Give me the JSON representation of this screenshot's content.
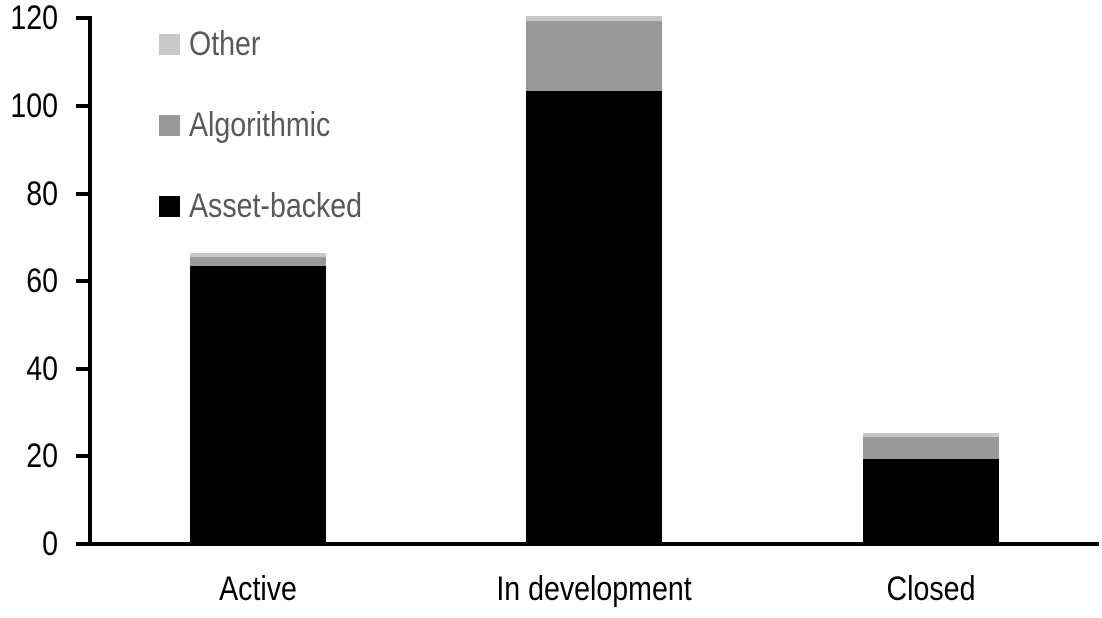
{
  "chart_data": {
    "type": "bar",
    "stacked": true,
    "title": "",
    "categories": [
      "Active",
      "In development",
      "Closed"
    ],
    "series": [
      {
        "name": "Asset-backed",
        "color": "#000000",
        "values": [
          63,
          103,
          19
        ]
      },
      {
        "name": "Algorithmic",
        "color": "#999999",
        "values": [
          2,
          16,
          5
        ]
      },
      {
        "name": "Other",
        "color": "#c7c7c7",
        "values": [
          1,
          1,
          1
        ]
      }
    ],
    "totals": [
      66,
      120,
      25
    ],
    "y_ticks": [
      0,
      20,
      40,
      60,
      80,
      100,
      120
    ],
    "ylim": [
      0,
      120
    ],
    "xlabel": "",
    "ylabel": "",
    "grid": false,
    "legend_position": "top-left",
    "legend_order": [
      "Other",
      "Algorithmic",
      "Asset-backed"
    ],
    "colors": {
      "axis": "#000000",
      "tick_label_text": "#000000",
      "category_label_text": "#000000",
      "legend_text": "#595959",
      "background": "#ffffff"
    }
  }
}
